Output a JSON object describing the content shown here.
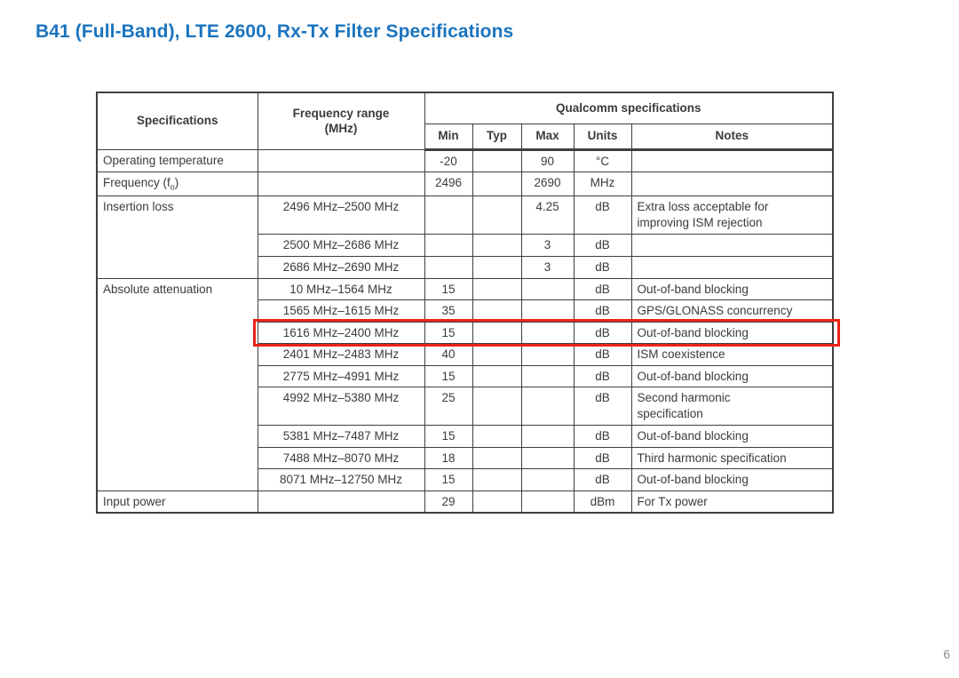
{
  "slide": {
    "title": "B41 (Full-Band), LTE 2600, Rx-Tx Filter Specifications",
    "page_number": "6"
  },
  "colors": {
    "title_blue": "#1B74BE",
    "highlight_red": "#EA2318",
    "table_border": "#3F3F3F",
    "table_text": "#3B3B3B",
    "page_number_gray": "#8C8C8C"
  },
  "table": {
    "header": {
      "specifications": "Specifications",
      "frequency_range": "Frequency range",
      "frequency_range_unit": "(MHz)",
      "qualcomm_group": "Qualcomm specifications",
      "min": "Min",
      "typ": "Typ",
      "max": "Max",
      "units": "Units",
      "notes": "Notes"
    },
    "specs": [
      {
        "label": "Operating temperature",
        "rowspan": 1
      },
      {
        "label_pre": "Frequency (f",
        "label_sub": "o",
        "label_post": ")",
        "rowspan": 1
      },
      {
        "label": "Insertion loss",
        "rowspan": 3
      },
      {
        "label": "Absolute attenuation",
        "rowspan": 9
      },
      {
        "label": "Input power",
        "rowspan": 1
      }
    ],
    "rows": [
      {
        "freq": "",
        "min": "-20",
        "typ": "",
        "max": "90",
        "units": "°C",
        "notes": ""
      },
      {
        "freq": "",
        "min": "2496",
        "typ": "",
        "max": "2690",
        "units": "MHz",
        "notes": ""
      },
      {
        "freq": "2496 MHz–2500 MHz",
        "min": "",
        "typ": "",
        "max": "4.25",
        "units": "dB",
        "notes": "Extra loss acceptable for\nimproving ISM rejection"
      },
      {
        "freq": "2500 MHz–2686 MHz",
        "min": "",
        "typ": "",
        "max": "3",
        "units": "dB",
        "notes": ""
      },
      {
        "freq": "2686 MHz–2690 MHz",
        "min": "",
        "typ": "",
        "max": "3",
        "units": "dB",
        "notes": ""
      },
      {
        "freq": "10 MHz–1564 MHz",
        "min": "15",
        "typ": "",
        "max": "",
        "units": "dB",
        "notes": "Out-of-band blocking"
      },
      {
        "freq": "1565 MHz–1615 MHz",
        "min": "35",
        "typ": "",
        "max": "",
        "units": "dB",
        "notes": "GPS/GLONASS concurrency"
      },
      {
        "freq": "1616 MHz–2400 MHz",
        "min": "15",
        "typ": "",
        "max": "",
        "units": "dB",
        "notes": "Out-of-band blocking",
        "highlighted": true
      },
      {
        "freq": "2401 MHz–2483 MHz",
        "min": "40",
        "typ": "",
        "max": "",
        "units": "dB",
        "notes": "ISM coexistence"
      },
      {
        "freq": "2775 MHz–4991 MHz",
        "min": "15",
        "typ": "",
        "max": "",
        "units": "dB",
        "notes": "Out-of-band blocking"
      },
      {
        "freq": "4992 MHz–5380 MHz",
        "min": "25",
        "typ": "",
        "max": "",
        "units": "dB",
        "notes": "Second harmonic\nspecification"
      },
      {
        "freq": "5381 MHz–7487 MHz",
        "min": "15",
        "typ": "",
        "max": "",
        "units": "dB",
        "notes": "Out-of-band blocking"
      },
      {
        "freq": "7488 MHz–8070 MHz",
        "min": "18",
        "typ": "",
        "max": "",
        "units": "dB",
        "notes": "Third harmonic specification"
      },
      {
        "freq": "8071 MHz–12750 MHz",
        "min": "15",
        "typ": "",
        "max": "",
        "units": "dB",
        "notes": "Out-of-band blocking"
      },
      {
        "freq": "",
        "min": "29",
        "typ": "",
        "max": "",
        "units": "dBm",
        "notes": "For Tx power"
      }
    ]
  }
}
